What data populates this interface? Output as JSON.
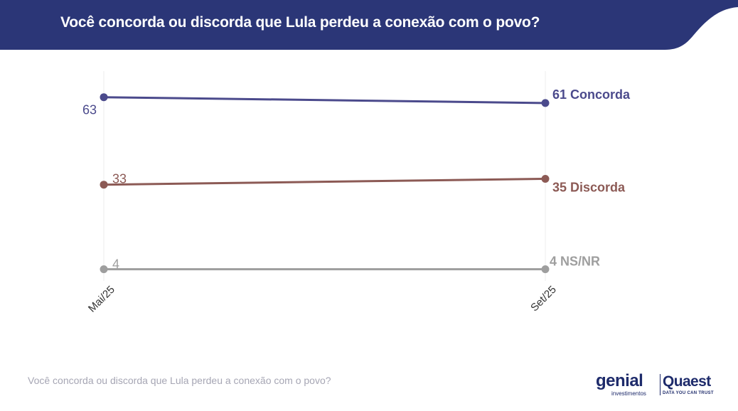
{
  "header": {
    "title": "Você concorda ou discorda que Lula perdeu a conexão com o povo?",
    "background_color": "#2b3677"
  },
  "footer": {
    "question": "Você concorda ou discorda que Lula perdeu a conexão com o povo?"
  },
  "logos": {
    "genial": {
      "name": "genial",
      "tagline": "investimentos",
      "icon": "genial-logo"
    },
    "quaest": {
      "name": "Quaest",
      "tagline": "DATA YOU CAN TRUST",
      "icon": "quaest-logo"
    }
  },
  "chart_data": {
    "type": "line",
    "title": "",
    "xlabel": "",
    "ylabel": "",
    "categories": [
      "Mai/25",
      "Set/25"
    ],
    "ylim": [
      0,
      70
    ],
    "grid": "vertical",
    "legend": "direct-labels-right",
    "series": [
      {
        "name": "Concorda",
        "values": [
          63,
          61
        ],
        "color": "#4b4a8c",
        "start_label": "63",
        "end_label": "61 Concorda"
      },
      {
        "name": "Discorda",
        "values": [
          33,
          35
        ],
        "color": "#8c5a55",
        "start_label": "33",
        "end_label": "35 Discorda"
      },
      {
        "name": "NS/NR",
        "values": [
          4,
          4
        ],
        "color": "#9e9e9e",
        "start_label": "4",
        "end_label": "4 NS/NR"
      }
    ]
  }
}
